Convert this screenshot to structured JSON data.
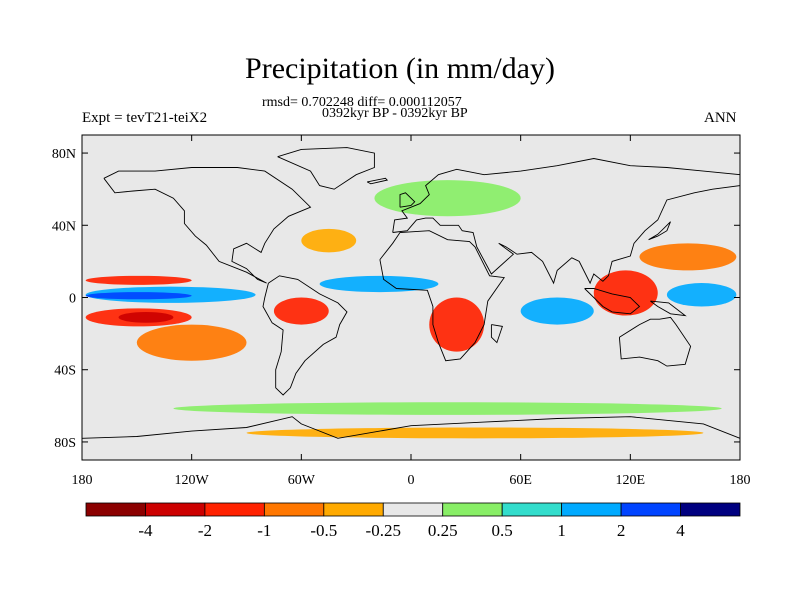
{
  "header": {
    "title": "Precipitation (in mm/day)",
    "stats": "rmsd= 0.702248 diff= 0.000112057",
    "period": "0392kyr BP - 0392kyr BP",
    "experiment": "Expt = tevT21-teiX2",
    "season": "ANN"
  },
  "axes": {
    "lat_ticks": [
      {
        "value": 80,
        "label": "80N"
      },
      {
        "value": 40,
        "label": "40N"
      },
      {
        "value": 0,
        "label": "0"
      },
      {
        "value": -40,
        "label": "40S"
      },
      {
        "value": -80,
        "label": "80S"
      }
    ],
    "lon_ticks": [
      {
        "value": -180,
        "label": "180"
      },
      {
        "value": -120,
        "label": "120W"
      },
      {
        "value": -60,
        "label": "60W"
      },
      {
        "value": 0,
        "label": "0"
      },
      {
        "value": 60,
        "label": "60E"
      },
      {
        "value": 120,
        "label": "120E"
      },
      {
        "value": 180,
        "label": "180"
      }
    ],
    "lat_range": [
      -90,
      90
    ],
    "lon_range": [
      -180,
      180
    ]
  },
  "colorbar": {
    "colors": [
      "#8b0000",
      "#cc0000",
      "#ff2200",
      "#ff7700",
      "#ffaa00",
      "#e8e8e8",
      "#88ee66",
      "#33ddcc",
      "#00aaff",
      "#0044ff",
      "#000080"
    ],
    "labels": [
      "-4",
      "-2",
      "-1",
      "-0.5",
      "-0.25",
      "0.25",
      "0.5",
      "1",
      "2",
      "4"
    ]
  },
  "field": {
    "background_color": "#e8e8e8",
    "regions": [
      {
        "name": "equatorial-pacific-wet-band",
        "color": "#00aaff",
        "lon": [
          -178,
          -85
        ],
        "lat": [
          -3,
          6
        ]
      },
      {
        "name": "equatorial-pacific-core",
        "color": "#0044ff",
        "lon": [
          -178,
          -120
        ],
        "lat": [
          -1,
          3
        ]
      },
      {
        "name": "north-pacific-dry-band",
        "color": "#ff2200",
        "lon": [
          -178,
          -120
        ],
        "lat": [
          7,
          12
        ]
      },
      {
        "name": "south-pacific-dry",
        "color": "#ff2200",
        "lon": [
          -178,
          -120
        ],
        "lat": [
          -16,
          -6
        ]
      },
      {
        "name": "south-pacific-dry-core",
        "color": "#cc0000",
        "lon": [
          -160,
          -130
        ],
        "lat": [
          -14,
          -8
        ]
      },
      {
        "name": "south-pacific-diagonal",
        "color": "#ff7700",
        "lon": [
          -150,
          -90
        ],
        "lat": [
          -35,
          -15
        ]
      },
      {
        "name": "north-atlantic-orange",
        "color": "#ffaa00",
        "lon": [
          -60,
          -30
        ],
        "lat": [
          25,
          38
        ]
      },
      {
        "name": "atlantic-itcz",
        "color": "#00aaff",
        "lon": [
          -50,
          15
        ],
        "lat": [
          3,
          12
        ]
      },
      {
        "name": "amazon-dry",
        "color": "#ff2200",
        "lon": [
          -75,
          -45
        ],
        "lat": [
          -15,
          0
        ]
      },
      {
        "name": "south-africa-dry",
        "color": "#ff2200",
        "lon": [
          10,
          40
        ],
        "lat": [
          -30,
          0
        ]
      },
      {
        "name": "indian-ocean-wet",
        "color": "#00aaff",
        "lon": [
          60,
          100
        ],
        "lat": [
          -15,
          0
        ]
      },
      {
        "name": "indonesia-dry",
        "color": "#ff2200",
        "lon": [
          100,
          135
        ],
        "lat": [
          -10,
          15
        ]
      },
      {
        "name": "west-pacific-wet",
        "color": "#00aaff",
        "lon": [
          140,
          178
        ],
        "lat": [
          -5,
          8
        ]
      },
      {
        "name": "nw-pacific-dry",
        "color": "#ff7700",
        "lon": [
          125,
          178
        ],
        "lat": [
          15,
          30
        ]
      },
      {
        "name": "eurasia-green",
        "color": "#88ee66",
        "lon": [
          -20,
          60
        ],
        "lat": [
          45,
          65
        ]
      },
      {
        "name": "southern-ocean-green",
        "color": "#88ee66",
        "lon": [
          -130,
          170
        ],
        "lat": [
          -65,
          -58
        ]
      },
      {
        "name": "antarctic-coast-orange",
        "color": "#ffaa00",
        "lon": [
          -90,
          160
        ],
        "lat": [
          -78,
          -72
        ]
      }
    ]
  }
}
